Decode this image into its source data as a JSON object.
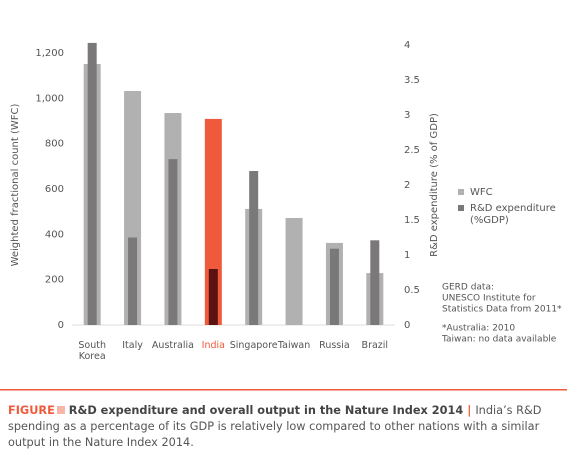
{
  "chart_data": {
    "type": "bar",
    "categories": [
      "South Korea",
      "Italy",
      "Australia",
      "India",
      "Singapore",
      "Taiwan",
      "Russia",
      "Brazil"
    ],
    "series": [
      {
        "name": "WFC",
        "color": "#b1b1b1",
        "values": [
          1151,
          1032,
          935,
          909,
          512,
          472,
          362,
          229
        ],
        "colors": [
          "#b1b1b1",
          "#b1b1b1",
          "#b1b1b1",
          "#f05a3c",
          "#b1b1b1",
          "#b1b1b1",
          "#b1b1b1",
          "#b1b1b1"
        ]
      },
      {
        "name": "R&D expenditure (%GDP)",
        "color": "#7a7879",
        "axis": "y2",
        "values": [
          4.03,
          1.25,
          2.37,
          0.8,
          2.2,
          null,
          1.09,
          1.21
        ],
        "colors": [
          "#7a7879",
          "#7a7879",
          "#7a7879",
          "#5a1212",
          "#7a7879",
          "#7a7879",
          "#7a7879",
          "#7a7879"
        ]
      }
    ],
    "ylabel": "Weighted fractional count (WFC)",
    "y2label": "R&D expenditure (% of GDP)",
    "ylim": [
      0,
      1235
    ],
    "yticks": [
      0,
      200,
      400,
      600,
      800,
      {
        "value": 1000,
        "label": "1,000"
      },
      {
        "value": 1200,
        "label": "1,200"
      }
    ],
    "y2lim": [
      0,
      4
    ],
    "y2ticks": [
      0,
      0.5,
      1,
      1.5,
      2,
      2.5,
      3,
      3.5,
      4
    ],
    "notes": [
      [
        "GERD data:",
        "UNESCO Institute for",
        "Statistics Data from 2011*"
      ],
      [
        "*Australia: 2010",
        "Taiwan: no data available"
      ]
    ]
  },
  "caption": {
    "label": "FIGURE",
    "title": "R&D expenditure and overall output in the Nature Index 2014",
    "separator": "|",
    "text": "India’s R&D spending as a percentage of its GDP is relatively low compared to other nations with a similar output in the Nature Index 2014."
  }
}
